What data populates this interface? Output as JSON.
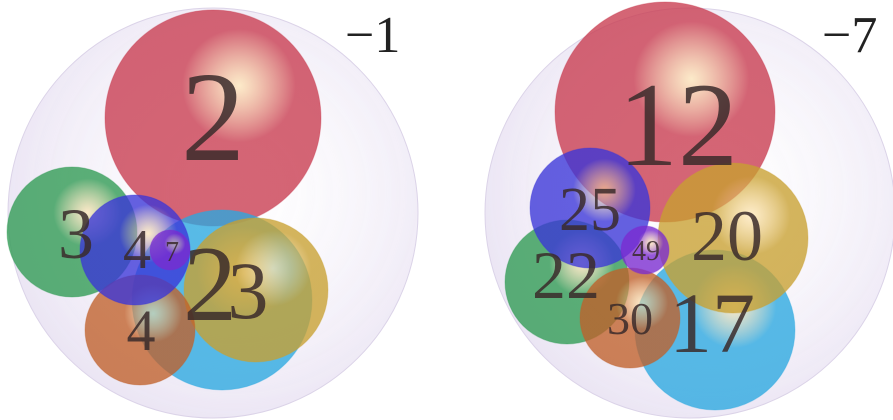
{
  "colors": {
    "outer_fill": "#e4dcf0",
    "red": "#c83a4e",
    "green": "#2e9a52",
    "blue": "#3a35d8",
    "violet": "#7a2ad0",
    "orange": "#c0602a",
    "cyan": "#2aa8e0",
    "yellow": "#c8a030",
    "label": "#3a2a2a"
  },
  "diagrams": [
    {
      "corner_label": "−1",
      "spheres": [
        {
          "label": "2",
          "color": "red"
        },
        {
          "label": "3",
          "color": "green"
        },
        {
          "label": "4",
          "color": "blue"
        },
        {
          "label": "7",
          "color": "violet"
        },
        {
          "label": "4",
          "color": "orange"
        },
        {
          "label": "2",
          "color": "cyan"
        },
        {
          "label": "3",
          "color": "yellow"
        }
      ]
    },
    {
      "corner_label": "−7",
      "spheres": [
        {
          "label": "12",
          "color": "red"
        },
        {
          "label": "25",
          "color": "blue"
        },
        {
          "label": "22",
          "color": "green"
        },
        {
          "label": "49",
          "color": "violet"
        },
        {
          "label": "20",
          "color": "yellow"
        },
        {
          "label": "30",
          "color": "orange"
        },
        {
          "label": "17",
          "color": "cyan"
        }
      ]
    }
  ]
}
